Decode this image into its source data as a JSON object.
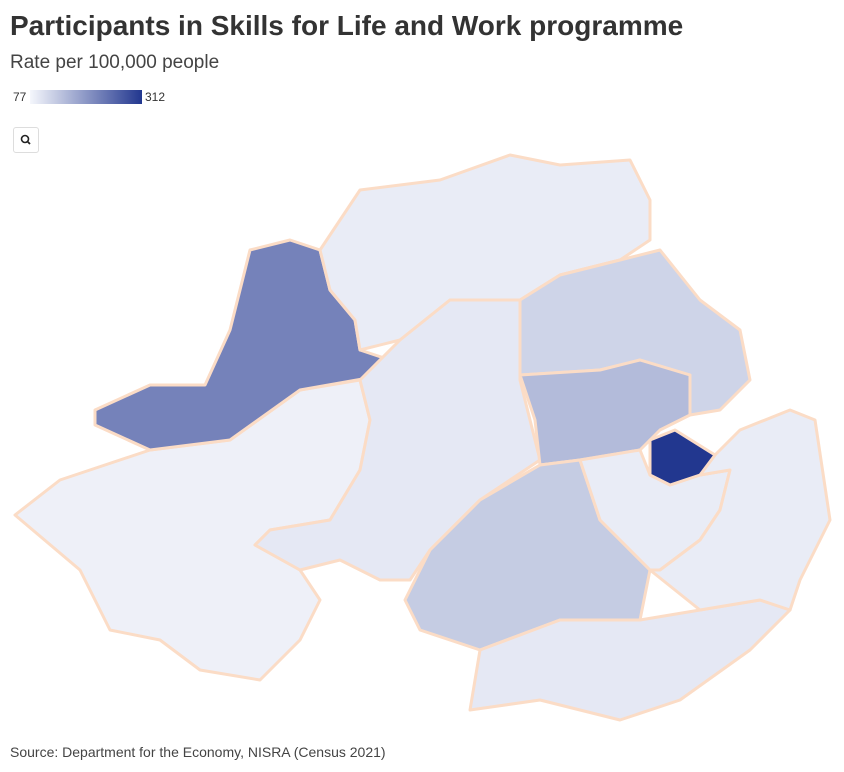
{
  "title": "Participants in Skills for Life and Work programme",
  "subtitle": "Rate per 100,000 people",
  "legend": {
    "min": 77,
    "max": 312,
    "min_color": "#f5f7fc",
    "max_color": "#22378f"
  },
  "regions": {
    "values": [
      85,
      220,
      90,
      95,
      120,
      150,
      312,
      130,
      95,
      90,
      90
    ]
  },
  "source": "Source: Department for the Economy, NISRA (Census 2021)"
}
